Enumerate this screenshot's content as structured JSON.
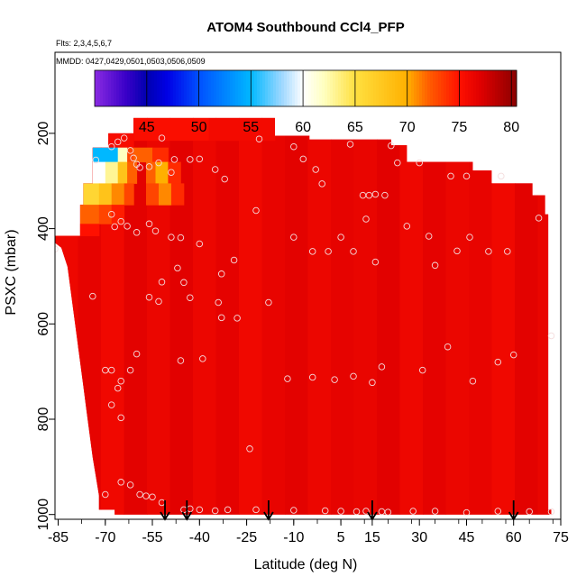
{
  "chart_data": {
    "type": "heatmap",
    "title": "ATOM4 Southbound CCl4_PFP",
    "subtitle_flights": "Flts: 2,3,4,5,6,7",
    "subtitle_dates": "MMDD: 0427,0429,0501,0503,0506,0509",
    "xlabel": "Latitude (deg N)",
    "ylabel": "PSXC (mbar)",
    "x_ticks": [
      -85,
      -70,
      -55,
      -40,
      -25,
      -10,
      5,
      15,
      30,
      45,
      60,
      75
    ],
    "x_tick_labels": [
      "-85",
      "-70",
      "-55",
      "-40",
      "-25",
      "-10",
      "5",
      "15",
      "30",
      "45",
      "60",
      "75"
    ],
    "y_ticks": [
      200,
      400,
      600,
      800,
      1000
    ],
    "y_tick_labels": [
      "200",
      "400",
      "600",
      "800",
      "1000"
    ],
    "xlim": [
      -86,
      75
    ],
    "ylim": [
      1010,
      30
    ],
    "colorbar": {
      "ticks": [
        45,
        50,
        55,
        60,
        65,
        70,
        75,
        80
      ],
      "tick_labels": [
        "45",
        "50",
        "55",
        "60",
        "65",
        "70",
        "75",
        "80"
      ],
      "range": [
        40,
        80.5
      ],
      "stops": [
        {
          "v": 40,
          "color": "#8a2be2"
        },
        {
          "v": 43,
          "color": "#3a00c8"
        },
        {
          "v": 45,
          "color": "#0000b0"
        },
        {
          "v": 47,
          "color": "#0000e6"
        },
        {
          "v": 50,
          "color": "#0050ff"
        },
        {
          "v": 55,
          "color": "#00b8ff"
        },
        {
          "v": 58,
          "color": "#a0d8ff"
        },
        {
          "v": 60,
          "color": "#ffffff"
        },
        {
          "v": 62,
          "color": "#ffffc0"
        },
        {
          "v": 65,
          "color": "#ffe040"
        },
        {
          "v": 70,
          "color": "#ffb000"
        },
        {
          "v": 72,
          "color": "#ff6000"
        },
        {
          "v": 75,
          "color": "#ff1000"
        },
        {
          "v": 77,
          "color": "#e00000"
        },
        {
          "v": 80.5,
          "color": "#8b0000"
        }
      ]
    },
    "field_base_value": 76.3,
    "field": [
      {
        "lat0": -61,
        "lat1": -37,
        "p0": 168,
        "p1": 215,
        "value": 75.3
      },
      {
        "lat0": -37,
        "lat1": -16,
        "p0": 168,
        "p1": 215,
        "value": 75.8
      },
      {
        "lat0": -69,
        "lat1": -61,
        "p0": 200,
        "p1": 230,
        "value": 75.5
      },
      {
        "lat0": -74,
        "lat1": -66,
        "p0": 230,
        "p1": 260,
        "value": 55
      },
      {
        "lat0": -66,
        "lat1": -63,
        "p0": 230,
        "p1": 260,
        "value": 62
      },
      {
        "lat0": -63,
        "lat1": -61,
        "p0": 230,
        "p1": 260,
        "value": 73
      },
      {
        "lat0": -61,
        "lat1": -55,
        "p0": 230,
        "p1": 260,
        "value": 72
      },
      {
        "lat0": -55,
        "lat1": -50,
        "p0": 230,
        "p1": 260,
        "value": 74
      },
      {
        "lat0": -74,
        "lat1": -70,
        "p0": 260,
        "p1": 305,
        "value": 60
      },
      {
        "lat0": -70,
        "lat1": -66,
        "p0": 260,
        "p1": 305,
        "value": 63
      },
      {
        "lat0": -66,
        "lat1": -63,
        "p0": 260,
        "p1": 305,
        "value": 68
      },
      {
        "lat0": -63,
        "lat1": -60,
        "p0": 260,
        "p1": 305,
        "value": 72
      },
      {
        "lat0": -57,
        "lat1": -54,
        "p0": 260,
        "p1": 305,
        "value": 72
      },
      {
        "lat0": -54,
        "lat1": -50,
        "p0": 260,
        "p1": 305,
        "value": 70
      },
      {
        "lat0": -50,
        "lat1": -46,
        "p0": 260,
        "p1": 305,
        "value": 74
      },
      {
        "lat0": -77,
        "lat1": -72,
        "p0": 305,
        "p1": 350,
        "value": 66
      },
      {
        "lat0": -72,
        "lat1": -68,
        "p0": 305,
        "p1": 350,
        "value": 68
      },
      {
        "lat0": -68,
        "lat1": -64,
        "p0": 305,
        "p1": 350,
        "value": 71
      },
      {
        "lat0": -64,
        "lat1": -61,
        "p0": 305,
        "p1": 350,
        "value": 73
      },
      {
        "lat0": -57,
        "lat1": -53,
        "p0": 305,
        "p1": 350,
        "value": 73
      },
      {
        "lat0": -53,
        "lat1": -49,
        "p0": 305,
        "p1": 350,
        "value": 71
      },
      {
        "lat0": -49,
        "lat1": -45,
        "p0": 305,
        "p1": 350,
        "value": 74
      },
      {
        "lat0": -78,
        "lat1": -72,
        "p0": 350,
        "p1": 390,
        "value": 72
      },
      {
        "lat0": -72,
        "lat1": -68,
        "p0": 350,
        "p1": 390,
        "value": 73
      },
      {
        "lat0": -68,
        "lat1": -64,
        "p0": 350,
        "p1": 390,
        "value": 74.5
      },
      {
        "lat0": -86,
        "lat1": -78,
        "p0": 390,
        "p1": 415,
        "value": 75.5
      },
      {
        "lat0": -78,
        "lat1": -72,
        "p0": 390,
        "p1": 415,
        "value": 75
      }
    ],
    "data_boundary": [
      [
        -69,
        200
      ],
      [
        -61,
        200
      ],
      [
        -61,
        168
      ],
      [
        -16,
        168
      ],
      [
        -16,
        205
      ],
      [
        -5,
        205
      ],
      [
        -5,
        213
      ],
      [
        21,
        213
      ],
      [
        21,
        225
      ],
      [
        26,
        225
      ],
      [
        26,
        260
      ],
      [
        47,
        260
      ],
      [
        47,
        278
      ],
      [
        53,
        278
      ],
      [
        53,
        305
      ],
      [
        66,
        305
      ],
      [
        66,
        330
      ],
      [
        70,
        330
      ],
      [
        70,
        370
      ],
      [
        71,
        370
      ],
      [
        71,
        990
      ],
      [
        72,
        990
      ],
      [
        72,
        1000
      ],
      [
        -67,
        1000
      ],
      [
        -67,
        990
      ],
      [
        -72,
        990
      ],
      [
        -72,
        960
      ],
      [
        -73,
        920
      ],
      [
        -74,
        880
      ],
      [
        -75,
        830
      ],
      [
        -76,
        780
      ],
      [
        -77,
        730
      ],
      [
        -78,
        680
      ],
      [
        -79,
        630
      ],
      [
        -80,
        580
      ],
      [
        -81,
        530
      ],
      [
        -82,
        480
      ],
      [
        -84,
        440
      ],
      [
        -86,
        430
      ],
      [
        -86,
        415
      ],
      [
        -78,
        415
      ],
      [
        -78,
        350
      ],
      [
        -77,
        350
      ],
      [
        -77,
        305
      ],
      [
        -74,
        305
      ],
      [
        -74,
        230
      ],
      [
        -69,
        230
      ]
    ],
    "sample_points": [
      [
        -86,
        443
      ],
      [
        -68,
        228
      ],
      [
        -66,
        218
      ],
      [
        -64,
        210
      ],
      [
        -62,
        236
      ],
      [
        -73,
        256
      ],
      [
        -61,
        252
      ],
      [
        -60,
        265
      ],
      [
        -59,
        272
      ],
      [
        -56,
        270
      ],
      [
        -53,
        262
      ],
      [
        -49,
        282
      ],
      [
        -48,
        255
      ],
      [
        -52,
        210
      ],
      [
        -43,
        255
      ],
      [
        -40,
        254
      ],
      [
        -35,
        276
      ],
      [
        -32,
        296
      ],
      [
        -21,
        212
      ],
      [
        -10,
        228
      ],
      [
        -7,
        254
      ],
      [
        -3,
        276
      ],
      [
        -1,
        306
      ],
      [
        8,
        223
      ],
      [
        12,
        330
      ],
      [
        14,
        330
      ],
      [
        16,
        328
      ],
      [
        19,
        330
      ],
      [
        21,
        226
      ],
      [
        23,
        262
      ],
      [
        30,
        262
      ],
      [
        40,
        290
      ],
      [
        45,
        290
      ],
      [
        56,
        290
      ],
      [
        68,
        378
      ],
      [
        -68,
        370
      ],
      [
        -67,
        396
      ],
      [
        -65,
        385
      ],
      [
        -63,
        395
      ],
      [
        -60,
        408
      ],
      [
        -56,
        390
      ],
      [
        -54,
        405
      ],
      [
        -49,
        418
      ],
      [
        -46,
        419
      ],
      [
        -40,
        432
      ],
      [
        -33,
        495
      ],
      [
        -29,
        466
      ],
      [
        -22,
        362
      ],
      [
        -10,
        418
      ],
      [
        -4,
        448
      ],
      [
        1,
        448
      ],
      [
        5,
        418
      ],
      [
        9,
        448
      ],
      [
        13,
        380
      ],
      [
        16,
        470
      ],
      [
        26,
        395
      ],
      [
        33,
        416
      ],
      [
        35,
        477
      ],
      [
        42,
        447
      ],
      [
        46,
        418
      ],
      [
        52,
        448
      ],
      [
        58,
        448
      ],
      [
        -56,
        544
      ],
      [
        -53,
        553
      ],
      [
        -47,
        483
      ],
      [
        -45,
        513
      ],
      [
        -43,
        545
      ],
      [
        -34,
        555
      ],
      [
        -28,
        588
      ],
      [
        -18,
        555
      ],
      [
        -74,
        542
      ],
      [
        -70,
        697
      ],
      [
        -68,
        697
      ],
      [
        -66,
        735
      ],
      [
        -65,
        720
      ],
      [
        -62,
        697
      ],
      [
        -60,
        663
      ],
      [
        -52,
        512
      ],
      [
        -46,
        677
      ],
      [
        -39,
        673
      ],
      [
        -33,
        587
      ],
      [
        -24,
        862
      ],
      [
        -12,
        715
      ],
      [
        -4,
        712
      ],
      [
        3,
        717
      ],
      [
        9,
        710
      ],
      [
        15,
        723
      ],
      [
        18,
        690
      ],
      [
        31,
        697
      ],
      [
        39,
        648
      ],
      [
        47,
        720
      ],
      [
        55,
        680
      ],
      [
        60,
        665
      ],
      [
        72,
        625
      ],
      [
        -68,
        770
      ],
      [
        -65,
        797
      ],
      [
        -70,
        958
      ],
      [
        -65,
        932
      ],
      [
        -62,
        938
      ],
      [
        -59,
        958
      ],
      [
        -57,
        961
      ],
      [
        -55,
        963
      ],
      [
        -52,
        975
      ],
      [
        -45,
        990
      ],
      [
        -43,
        988
      ],
      [
        -40,
        990
      ],
      [
        -35,
        992
      ],
      [
        -31,
        990
      ],
      [
        -22,
        990
      ],
      [
        -10,
        991
      ],
      [
        0,
        992
      ],
      [
        5,
        993
      ],
      [
        10,
        994
      ],
      [
        13,
        993
      ],
      [
        18,
        994
      ],
      [
        20,
        995
      ],
      [
        28,
        993
      ],
      [
        35,
        993
      ],
      [
        45,
        996
      ],
      [
        55,
        993
      ],
      [
        65,
        994
      ],
      [
        72,
        994
      ]
    ],
    "arrow_latitudes": [
      -51,
      -44,
      -18,
      15,
      60
    ]
  }
}
